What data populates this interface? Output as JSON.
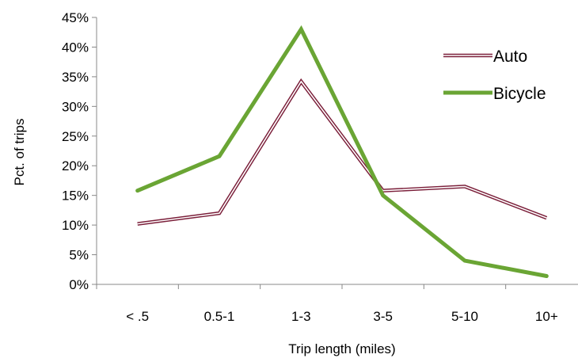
{
  "chart_data": {
    "type": "line",
    "xlabel": "Trip length  (miles)",
    "ylabel": "Pct. of trips",
    "categories": [
      "< .5",
      "0.5-1",
      "1-3",
      "3-5",
      "5-10",
      "10+"
    ],
    "ylim": [
      0,
      45
    ],
    "y_ticks": [
      0,
      5,
      10,
      15,
      20,
      25,
      30,
      35,
      40,
      45
    ],
    "y_tick_format": "percent",
    "grid": false,
    "legend_position": "top-right",
    "series": [
      {
        "name": "Auto",
        "values": [
          10.2,
          12.0,
          34.2,
          15.8,
          16.5,
          11.2
        ],
        "color": "#7b1f3a",
        "style": "double-line"
      },
      {
        "name": "Bicycle",
        "values": [
          15.8,
          21.6,
          43.0,
          15.0,
          4.0,
          1.4
        ],
        "color": "#6aa534",
        "style": "thick-line"
      }
    ]
  }
}
